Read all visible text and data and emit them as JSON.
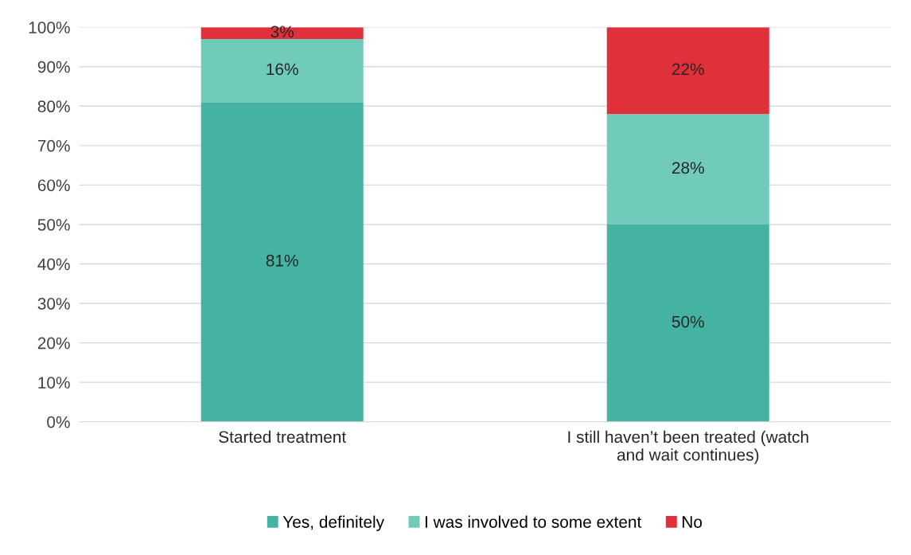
{
  "chart_data": {
    "type": "bar",
    "stacked": true,
    "categories": [
      "Started treatment",
      "I still haven’t been treated (watch and wait continues)"
    ],
    "series": [
      {
        "name": "Yes, definitely",
        "color": "#45b3a2",
        "values": [
          81,
          50
        ],
        "value_labels": [
          "81%",
          "50%"
        ]
      },
      {
        "name": "I was involved to some extent",
        "color": "#70cbbb",
        "values": [
          16,
          28
        ],
        "value_labels": [
          "16%",
          "28%"
        ]
      },
      {
        "name": "No",
        "color": "#e0313b",
        "values": [
          3,
          22
        ],
        "value_labels": [
          "3%",
          "22%"
        ]
      }
    ],
    "ylim": [
      0,
      100
    ],
    "yticks": [
      {
        "value": 0,
        "label": "0%"
      },
      {
        "value": 10,
        "label": "10%"
      },
      {
        "value": 20,
        "label": "20%"
      },
      {
        "value": 30,
        "label": "30%"
      },
      {
        "value": 40,
        "label": "40%"
      },
      {
        "value": 50,
        "label": "50%"
      },
      {
        "value": 60,
        "label": "60%"
      },
      {
        "value": 70,
        "label": "70%"
      },
      {
        "value": 80,
        "label": "80%"
      },
      {
        "value": 90,
        "label": "90%"
      },
      {
        "value": 100,
        "label": "100%"
      }
    ],
    "grid": "y",
    "legend": "bottom"
  }
}
